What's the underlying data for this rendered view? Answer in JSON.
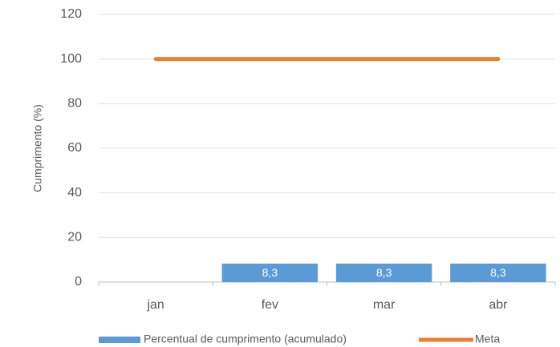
{
  "chart_data": {
    "type": "bar",
    "y_label": "Cumprimento (%)",
    "categories": [
      "jan",
      "fev",
      "mar",
      "abr"
    ],
    "series": [
      {
        "name": "Percentual de cumprimento (acumulado)",
        "type": "bar",
        "color": "#5b9bd5",
        "values": [
          null,
          8.3,
          8.3,
          8.3
        ],
        "value_labels": [
          null,
          "8,3",
          "8,3",
          "8,3"
        ]
      },
      {
        "name": "Meta",
        "type": "line",
        "color": "#ed7d31",
        "values": [
          100,
          100,
          100,
          100
        ]
      }
    ],
    "ylim": [
      0,
      120
    ],
    "yticks": [
      0,
      20,
      40,
      60,
      80,
      100,
      120
    ],
    "grid": true,
    "legend": "bottom"
  }
}
